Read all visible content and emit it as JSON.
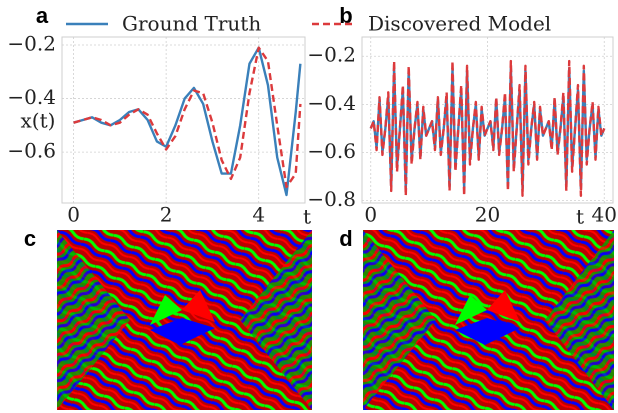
{
  "panel_labels": [
    "a",
    "b",
    "c",
    "d"
  ],
  "chart_data": [
    {
      "type": "line",
      "ylabel": "x(t)",
      "xlabel": "t",
      "grid": true,
      "x": [
        0,
        0.2,
        0.4,
        0.6,
        0.8,
        1.0,
        1.2,
        1.4,
        1.6,
        1.8,
        2.0,
        2.2,
        2.4,
        2.6,
        2.8,
        3.0,
        3.2,
        3.4,
        3.6,
        3.8,
        4.0,
        4.2,
        4.4,
        4.6,
        4.8,
        4.9
      ],
      "series": [
        {
          "name": "Ground Truth",
          "color": "#3a80ba",
          "style": "solid",
          "values": [
            -0.49,
            -0.48,
            -0.47,
            -0.49,
            -0.5,
            -0.48,
            -0.45,
            -0.44,
            -0.48,
            -0.56,
            -0.58,
            -0.5,
            -0.4,
            -0.36,
            -0.42,
            -0.56,
            -0.68,
            -0.68,
            -0.5,
            -0.27,
            -0.21,
            -0.35,
            -0.62,
            -0.76,
            -0.45,
            -0.27
          ]
        },
        {
          "name": "Discovered Model",
          "color": "#dc3a3c",
          "style": "dashed",
          "values": [
            -0.49,
            -0.48,
            -0.47,
            -0.48,
            -0.5,
            -0.49,
            -0.46,
            -0.44,
            -0.46,
            -0.53,
            -0.59,
            -0.54,
            -0.44,
            -0.37,
            -0.38,
            -0.49,
            -0.63,
            -0.7,
            -0.62,
            -0.38,
            -0.21,
            -0.26,
            -0.5,
            -0.73,
            -0.68,
            -0.42
          ]
        }
      ],
      "xlim": [
        -0.25,
        5.0
      ],
      "xticks": [
        0,
        2,
        4
      ],
      "ylim": [
        -0.79,
        -0.17
      ],
      "yticks": [
        {
          "value": -0.6,
          "label": "−0.6"
        },
        {
          "value": -0.4,
          "label": "−0.4"
        },
        {
          "value": -0.2,
          "label": "−0.2"
        }
      ]
    },
    {
      "type": "line",
      "xlabel": "t",
      "grid": true,
      "x": [
        0,
        0.5,
        1,
        1.5,
        2,
        2.5,
        3,
        3.5,
        4,
        4.5,
        5,
        5.5,
        6,
        6.5,
        7,
        7.5,
        8,
        8.5,
        9,
        9.5,
        10,
        10.5,
        11,
        11.5,
        12,
        12.5,
        13,
        13.5,
        14,
        14.5,
        15,
        15.5,
        16,
        16.5,
        17,
        17.5,
        18,
        18.5,
        19,
        19.5,
        20,
        20.5,
        21,
        21.5,
        22,
        22.5,
        23,
        23.5,
        24,
        24.5,
        25,
        25.5,
        26,
        26.5,
        27,
        27.5,
        28,
        28.5,
        29,
        29.5,
        30,
        30.5,
        31,
        31.5,
        32,
        32.5,
        33,
        33.5,
        34,
        34.5,
        35,
        35.5,
        36,
        36.5,
        37,
        37.5,
        38,
        38.5,
        39,
        39.5,
        40
      ],
      "series": [
        {
          "name": "Ground Truth",
          "color": "#3a80ba",
          "style": "solid",
          "values": [
            -0.5,
            -0.47,
            -0.58,
            -0.38,
            -0.6,
            -0.5,
            -0.37,
            -0.74,
            -0.25,
            -0.66,
            -0.5,
            -0.34,
            -0.75,
            -0.26,
            -0.63,
            -0.5,
            -0.4,
            -0.62,
            -0.42,
            -0.53,
            -0.5,
            -0.47,
            -0.58,
            -0.38,
            -0.6,
            -0.5,
            -0.37,
            -0.74,
            -0.25,
            -0.66,
            -0.5,
            -0.34,
            -0.75,
            -0.26,
            -0.63,
            -0.5,
            -0.4,
            -0.62,
            -0.42,
            -0.53,
            -0.5,
            -0.47,
            -0.58,
            -0.38,
            -0.6,
            -0.5,
            -0.37,
            -0.74,
            -0.25,
            -0.66,
            -0.5,
            -0.34,
            -0.75,
            -0.26,
            -0.63,
            -0.5,
            -0.4,
            -0.62,
            -0.42,
            -0.53,
            -0.5,
            -0.47,
            -0.58,
            -0.38,
            -0.6,
            -0.5,
            -0.37,
            -0.74,
            -0.25,
            -0.66,
            -0.5,
            -0.34,
            -0.75,
            -0.26,
            -0.63,
            -0.5,
            -0.4,
            -0.62,
            -0.42,
            -0.53,
            -0.5
          ]
        },
        {
          "name": "Discovered Model",
          "color": "#dc3a3c",
          "style": "dashed",
          "values": [
            -0.5,
            -0.47,
            -0.59,
            -0.37,
            -0.61,
            -0.5,
            -0.35,
            -0.76,
            -0.22,
            -0.68,
            -0.5,
            -0.32,
            -0.78,
            -0.24,
            -0.65,
            -0.5,
            -0.39,
            -0.63,
            -0.41,
            -0.53,
            -0.5,
            -0.47,
            -0.59,
            -0.37,
            -0.61,
            -0.5,
            -0.35,
            -0.76,
            -0.22,
            -0.68,
            -0.5,
            -0.32,
            -0.78,
            -0.24,
            -0.65,
            -0.5,
            -0.39,
            -0.63,
            -0.41,
            -0.53,
            -0.5,
            -0.47,
            -0.59,
            -0.37,
            -0.61,
            -0.5,
            -0.35,
            -0.76,
            -0.22,
            -0.68,
            -0.5,
            -0.32,
            -0.78,
            -0.24,
            -0.65,
            -0.5,
            -0.39,
            -0.63,
            -0.41,
            -0.53,
            -0.5,
            -0.47,
            -0.59,
            -0.37,
            -0.61,
            -0.5,
            -0.35,
            -0.76,
            -0.22,
            -0.68,
            -0.5,
            -0.32,
            -0.78,
            -0.24,
            -0.65,
            -0.5,
            -0.39,
            -0.63,
            -0.41,
            -0.53,
            -0.5
          ]
        }
      ],
      "xlim": [
        -1.5,
        41.5
      ],
      "xticks": [
        0,
        20,
        40
      ],
      "ylim": [
        -0.81,
        -0.12
      ],
      "yticks": [
        {
          "value": -0.8,
          "label": "−0.8"
        },
        {
          "value": -0.6,
          "label": "−0.6"
        },
        {
          "value": -0.4,
          "label": "−0.4"
        },
        {
          "value": -0.2,
          "label": "−0.2"
        }
      ]
    }
  ]
}
